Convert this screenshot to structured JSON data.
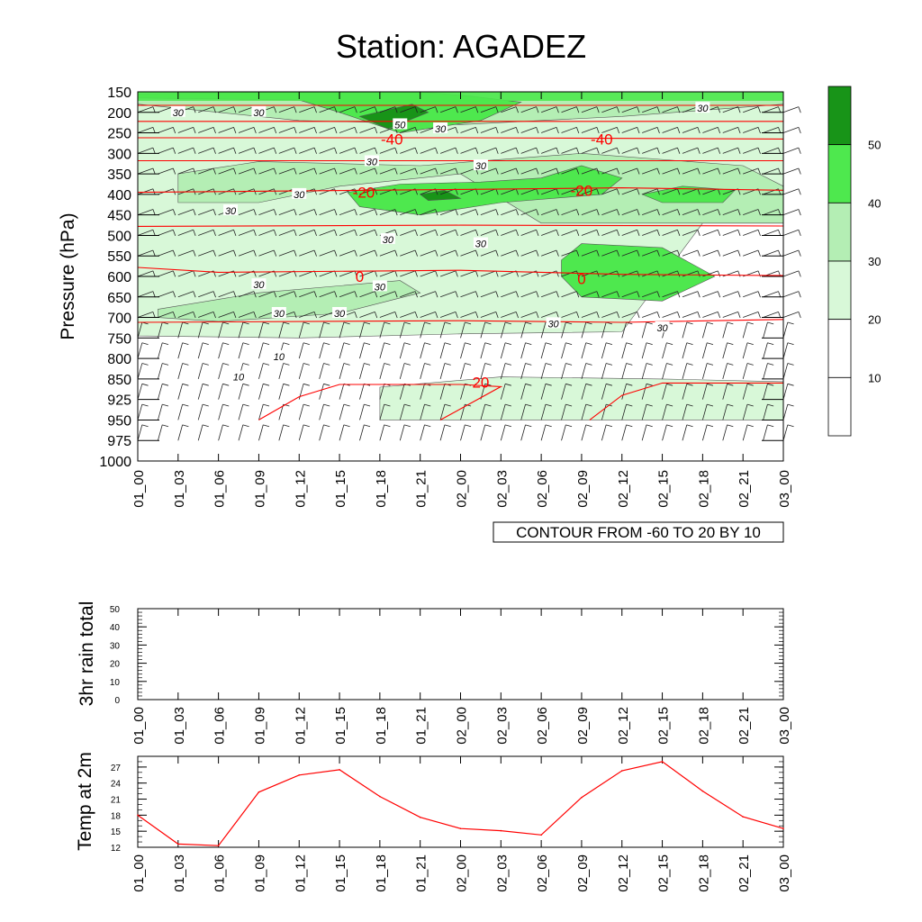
{
  "title": "Station: AGADEZ",
  "time_labels": [
    "01_00",
    "01_03",
    "01_06",
    "01_09",
    "01_12",
    "01_15",
    "01_18",
    "01_21",
    "02_00",
    "02_03",
    "02_06",
    "02_09",
    "02_12",
    "02_15",
    "02_18",
    "02_21",
    "03_00"
  ],
  "colors": {
    "fill_10_20": "#ffffff",
    "fill_20_30": "#d8f8d8",
    "fill_30_40": "#b4eeb4",
    "fill_40_50": "#4ee84e",
    "fill_50_60": "#189418",
    "contour_red": "#ff0000",
    "line_red": "#ff0000"
  },
  "chart_data": [
    {
      "type": "heatmap",
      "name": "pressure-time cross section",
      "title": "Station: AGADEZ",
      "ylabel": "Pressure (hPa)",
      "y_ticks": [
        150,
        200,
        250,
        300,
        350,
        400,
        450,
        500,
        550,
        600,
        650,
        700,
        750,
        800,
        850,
        925,
        950,
        975,
        1000
      ],
      "y_tick_labels": [
        "150",
        "200",
        "250",
        "300",
        "350",
        "400",
        "450",
        "500",
        "550",
        "600",
        "650",
        "700",
        "750",
        "800",
        "850",
        "925",
        "950",
        "975",
        "1000"
      ],
      "colorbar": {
        "levels": [
          10,
          20,
          30,
          40,
          50
        ],
        "labels": [
          "10",
          "20",
          "30",
          "40",
          "50"
        ]
      },
      "shaded_field_note_label": "",
      "wind_speed_labels": [
        {
          "t": 1,
          "p": 200,
          "text": "30"
        },
        {
          "t": 3,
          "p": 200,
          "text": "30"
        },
        {
          "t": 6.5,
          "p": 230,
          "text": "50"
        },
        {
          "t": 7.5,
          "p": 240,
          "text": "30"
        },
        {
          "t": 5.8,
          "p": 320,
          "text": "30"
        },
        {
          "t": 8.5,
          "p": 330,
          "text": "30"
        },
        {
          "t": 4,
          "p": 400,
          "text": "30"
        },
        {
          "t": 2.3,
          "p": 440,
          "text": "30"
        },
        {
          "t": 6.2,
          "p": 510,
          "text": "30"
        },
        {
          "t": 8.5,
          "p": 520,
          "text": "30"
        },
        {
          "t": 3,
          "p": 620,
          "text": "30"
        },
        {
          "t": 6,
          "p": 625,
          "text": "30"
        },
        {
          "t": 3.5,
          "p": 690,
          "text": "30"
        },
        {
          "t": 5,
          "p": 690,
          "text": "30"
        },
        {
          "t": 10.3,
          "p": 715,
          "text": "30"
        },
        {
          "t": 13,
          "p": 725,
          "text": "30"
        },
        {
          "t": 14,
          "p": 190,
          "text": "30"
        },
        {
          "t": 3.5,
          "p": 795,
          "text": "10"
        },
        {
          "t": 2.5,
          "p": 845,
          "text": "10"
        }
      ],
      "temperature_contour_labels": [
        {
          "t": 6.3,
          "p": 265,
          "text": "-40"
        },
        {
          "t": 11.5,
          "p": 265,
          "text": "-40"
        },
        {
          "t": 5.6,
          "p": 395,
          "text": "-20"
        },
        {
          "t": 11,
          "p": 390,
          "text": "-20"
        },
        {
          "t": 5.5,
          "p": 600,
          "text": "0"
        },
        {
          "t": 11,
          "p": 605,
          "text": "0"
        },
        {
          "t": 8.5,
          "p": 862,
          "text": "20"
        }
      ],
      "note": "CONTOUR FROM -60 TO 20 BY 10"
    },
    {
      "type": "bar",
      "name": "rain",
      "ylabel": "3hr rain total",
      "ylim": [
        0,
        50
      ],
      "y_ticks": [
        0,
        10,
        20,
        30,
        40,
        50
      ],
      "y_tick_labels": [
        "0",
        "10",
        "20",
        "30",
        "40",
        "50"
      ],
      "values": [
        0,
        0,
        0,
        0,
        0,
        0,
        0,
        0,
        0,
        0,
        0,
        0,
        0,
        0,
        0,
        0,
        0
      ]
    },
    {
      "type": "line",
      "name": "temperature",
      "ylabel": "Temp at 2m",
      "ylim": [
        12,
        29
      ],
      "y_ticks": [
        12,
        15,
        18,
        21,
        24,
        27
      ],
      "y_tick_labels": [
        "12",
        "15",
        "18",
        "21",
        "24",
        "27"
      ],
      "values": [
        18.0,
        12.6,
        12.3,
        22.3,
        25.5,
        26.5,
        21.5,
        17.6,
        15.5,
        15.1,
        14.3,
        21.3,
        26.3,
        28.0,
        22.5,
        17.7,
        15.5
      ]
    }
  ]
}
